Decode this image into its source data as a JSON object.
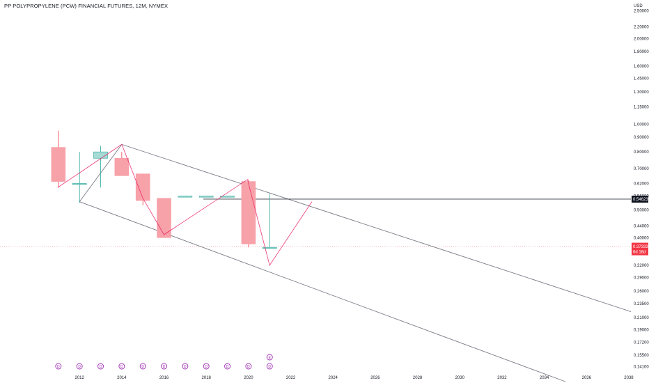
{
  "header": {
    "title": "PP POLYPROPYLENE (PCW) FINANCIAL FUTURES, 12M, NYMEX"
  },
  "price_axis": {
    "currency": "USD",
    "ticks": [
      "2.50000",
      "2.20000",
      "2.00000",
      "1.80000",
      "1.60000",
      "1.45000",
      "1.30000",
      "1.15000",
      "1.00000",
      "0.90000",
      "0.80000",
      "0.70000",
      "0.62000",
      "0.56000",
      "0.50000",
      "0.44000",
      "0.40000",
      "0.32000",
      "0.29000",
      "0.26000",
      "0.23500",
      "0.21000",
      "0.19000",
      "0.17200",
      "0.15500",
      "0.14100"
    ],
    "last_price_label": "0.37333",
    "countdown_label": "6d 18d",
    "line_price_label": "0.54623",
    "last_price_color": "#f23645",
    "line_label_color": "#131722"
  },
  "time_axis": {
    "ticks": [
      "2012",
      "2014",
      "2016",
      "2018",
      "2020",
      "2022",
      "2024",
      "2026",
      "2028",
      "2030",
      "2032",
      "2034",
      "2036",
      "2038"
    ]
  },
  "event_markers": {
    "dividend_icon": "D",
    "earnings_icon": "E",
    "markers": [
      "2011",
      "2012",
      "2013",
      "2014",
      "2015",
      "2016",
      "2017",
      "2018",
      "2019",
      "2020",
      "2021"
    ]
  },
  "colors": {
    "up": "#26a69a",
    "down": "#f7a1a9",
    "down_wick": "#f23645",
    "pattern": "#e91e63",
    "channel": "#787b86",
    "event": "#9c27b0"
  },
  "chart_data": {
    "type": "candlestick",
    "title": "PP POLYPROPYLENE (PCW) FINANCIAL FUTURES, 12M, NYMEX",
    "x_unit": "year",
    "y_unit": "USD",
    "y_scale": "log",
    "ylim": [
      0.125,
      2.7
    ],
    "xlim": [
      2008.5,
      2038.1
    ],
    "grid": false,
    "candles": [
      {
        "year": 2011,
        "open": 0.83,
        "high": 0.95,
        "low": 0.6,
        "close": 0.63
      },
      {
        "year": 2012,
        "open": 0.62,
        "high": 0.8,
        "low": 0.53,
        "close": 0.62
      },
      {
        "year": 2013,
        "open": 0.76,
        "high": 0.84,
        "low": 0.6,
        "close": 0.8
      },
      {
        "year": 2014,
        "open": 0.76,
        "high": 0.8,
        "low": 0.66,
        "close": 0.66
      },
      {
        "year": 2015,
        "open": 0.67,
        "high": 0.67,
        "low": 0.52,
        "close": 0.54
      },
      {
        "year": 2016,
        "open": 0.55,
        "high": 0.55,
        "low": 0.4,
        "close": 0.4
      },
      {
        "year": 2017,
        "open": 0.56,
        "high": 0.56,
        "low": 0.56,
        "close": 0.56
      },
      {
        "year": 2018,
        "open": 0.56,
        "high": 0.56,
        "low": 0.56,
        "close": 0.56
      },
      {
        "year": 2019,
        "open": 0.56,
        "high": 0.56,
        "low": 0.56,
        "close": 0.56
      },
      {
        "year": 2020,
        "open": 0.63,
        "high": 0.64,
        "low": 0.37,
        "close": 0.38
      },
      {
        "year": 2021,
        "open": 0.37,
        "high": 0.57,
        "low": 0.37,
        "close": 0.37
      }
    ],
    "horizontal_line": {
      "price": 0.54623
    },
    "last_price": 0.37333,
    "zigzag_pattern": [
      {
        "year": 2010.97,
        "price": 0.6
      },
      {
        "year": 2014.0,
        "price": 0.85
      },
      {
        "year": 2015.0,
        "price": 0.55
      },
      {
        "year": 2016.0,
        "price": 0.41
      },
      {
        "year": 2019.95,
        "price": 0.64
      },
      {
        "year": 2021.0,
        "price": 0.32
      },
      {
        "year": 2023.0,
        "price": 0.535
      }
    ],
    "channel": {
      "upper": [
        {
          "year": 2014.0,
          "price": 0.85
        },
        {
          "year": 2038.1,
          "price": 0.22
        }
      ],
      "lower": [
        {
          "year": 2012.0,
          "price": 0.535
        },
        {
          "year": 2035.0,
          "price": 0.125
        }
      ],
      "connector": [
        {
          "year": 2012.0,
          "price": 0.535
        },
        {
          "year": 2014.0,
          "price": 0.85
        }
      ]
    }
  }
}
